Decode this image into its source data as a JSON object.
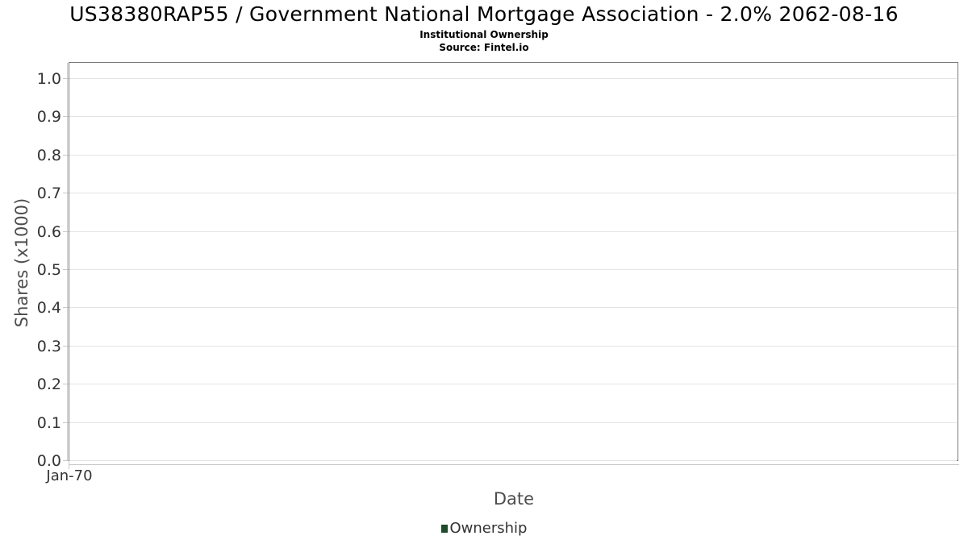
{
  "chart_data": {
    "type": "bar",
    "title": "US38380RAP55 / Government National Mortgage Association - 2.0% 2062-08-16",
    "subtitle": "Institutional Ownership",
    "source": "Source: Fintel.io",
    "xlabel": "Date",
    "ylabel": "Shares (x1000)",
    "x_tick_labels": [
      "Jan-70"
    ],
    "y_tick_labels": [
      "0.0",
      "0.1",
      "0.2",
      "0.3",
      "0.4",
      "0.5",
      "0.6",
      "0.7",
      "0.8",
      "0.9",
      "1.0"
    ],
    "ylim": [
      0.0,
      1.04
    ],
    "grid": true,
    "legend_position": "bottom-center",
    "series": [
      {
        "name": "Ownership",
        "color": "#1f4a2b",
        "x": [],
        "values": []
      }
    ],
    "colors": {
      "gridline": "#e4e4e4",
      "plot_border": "#7b7b7b",
      "axis_line": "#c9c9c9",
      "tick_label": "#333333",
      "axis_title": "#4d4d4d",
      "title_text": "#000000",
      "legend_marker": "#1f4a2b"
    }
  }
}
